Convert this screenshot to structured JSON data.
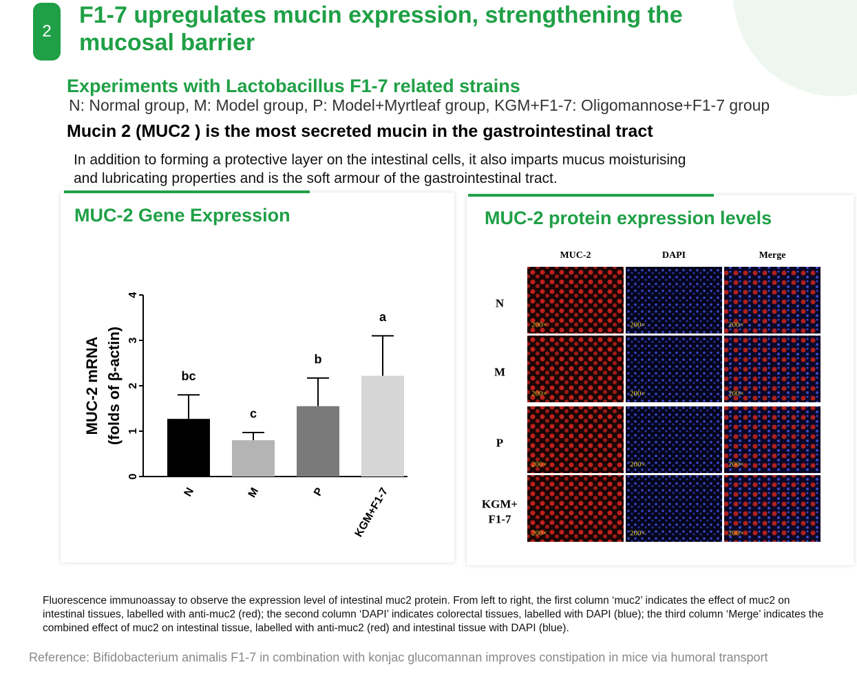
{
  "badge": "2",
  "header": {
    "title": "F1-7 upregulates mucin expression, strengthening the mucosal barrier",
    "subtitle": "Experiments with Lactobacillus F1-7 related strains",
    "groups": "N: Normal group, M: Model group, P: Model+Myrtleaf group, KGM+F1-7: Oligomannose+F1-7 group",
    "heading": "Mucin 2 (MUC2 ) is the most secreted mucin in the gastrointestinal tract",
    "paragraph": "In addition to forming a protective layer on the intestinal cells, it also imparts mucus moisturising and lubricating properties and is the soft armour of the gastrointestinal tract."
  },
  "chart_data": {
    "type": "bar",
    "title": "MUC-2 Gene Expression",
    "y_label": [
      "MUC-2 mRNA",
      "(folds of β-actin)"
    ],
    "categories": [
      "N",
      "M",
      "P",
      "KGM+F1-7"
    ],
    "values": [
      1.27,
      0.8,
      1.55,
      2.22
    ],
    "errors": [
      0.53,
      0.17,
      0.62,
      0.88
    ],
    "annotations": [
      "bc",
      "c",
      "b",
      "a"
    ],
    "colors": [
      "#000000",
      "#b4b4b4",
      "#7a7a7a",
      "#d6d6d6"
    ],
    "ylim": [
      0,
      4
    ],
    "yticks": [
      0,
      1,
      2,
      3,
      4
    ]
  },
  "image_panel": {
    "title": "MUC-2 protein expression levels",
    "columns": [
      "MUC-2",
      "DAPI",
      "Merge"
    ],
    "rows": [
      [
        "N"
      ],
      [
        "M"
      ],
      [
        "P"
      ],
      [
        "KGM+",
        "F1-7"
      ]
    ],
    "magnification": "200×"
  },
  "caption": "Fluorescence immunoassay to observe the expression level of intestinal muc2 protein. From left to right, the first column ‘muc2’ indicates the effect of muc2 on intestinal tissues, labelled with anti-muc2 (red); the second column ‘DAPI’ indicates colorectal tissues, labelled with DAPI (blue); the third column ‘Merge’ indicates the combined effect of muc2 on intestinal tissue, labelled with anti-muc2 (red) and intestinal tissue with DAPI (blue).",
  "reference": "Reference:  Bifidobacterium animalis F1-7 in combination with konjac glucomannan improves constipation in mice via humoral transport"
}
